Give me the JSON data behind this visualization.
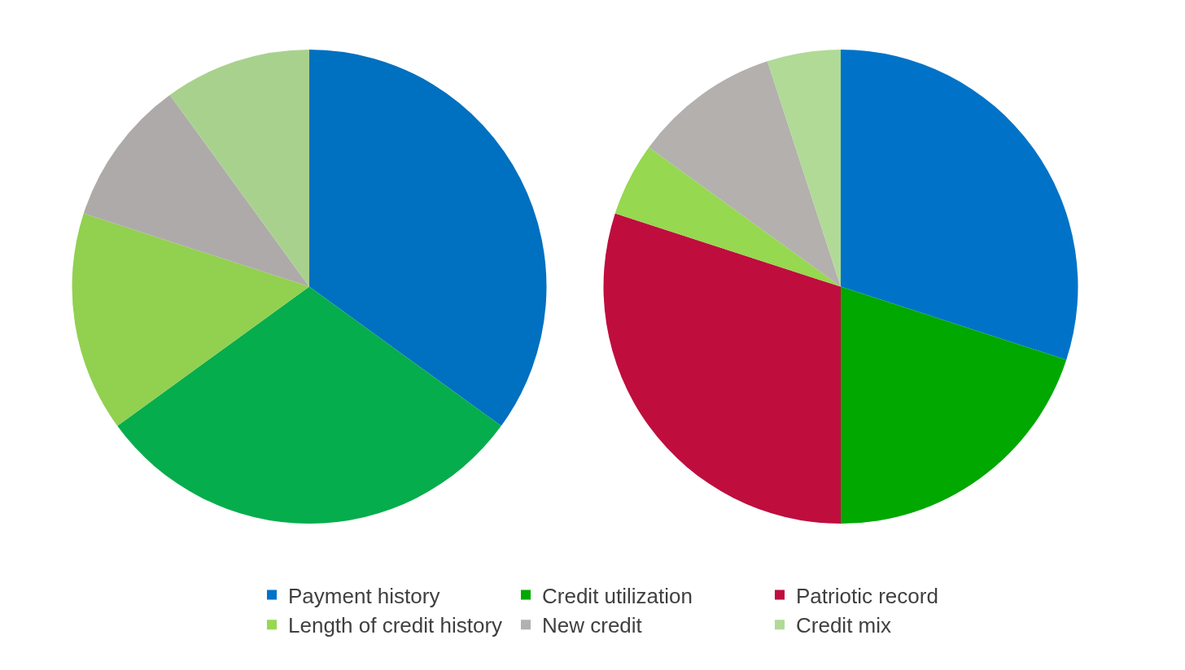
{
  "chart_data": {
    "type": "pie",
    "categories": [
      "Payment history",
      "Credit utilization",
      "Patriotic record",
      "Length of credit history",
      "New credit",
      "Credit mix"
    ],
    "series": [
      {
        "values": [
          35,
          30,
          null,
          15,
          10,
          10
        ],
        "colors": [
          "#0070c0",
          "#06ad4c",
          "#bf0d3e",
          "#92d050",
          "#aeaaaa",
          "#a9d18e"
        ]
      },
      {
        "values": [
          30,
          20,
          30,
          5,
          10,
          5
        ],
        "colors": [
          "#0073c8",
          "#00a800",
          "#bf0d3e",
          "#96d850",
          "#b3b0ae",
          "#b0da96"
        ]
      }
    ],
    "legend": "bottom"
  }
}
